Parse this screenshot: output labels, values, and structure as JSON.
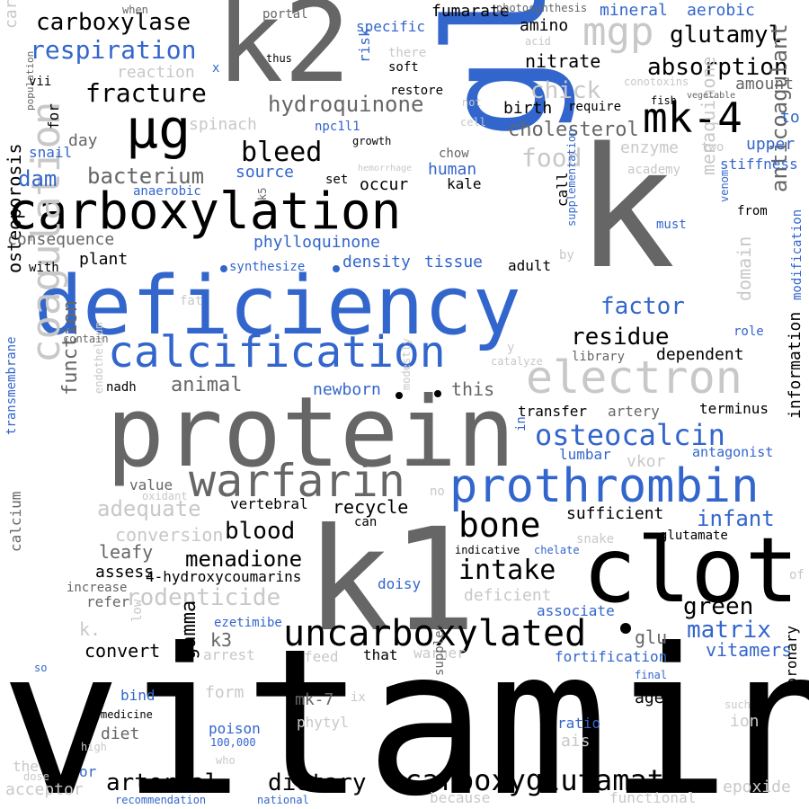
{
  "colors": {
    "black": "#000000",
    "dark_gray": "#666666",
    "light_gray": "#c8c8c8",
    "blue": "#3366cc"
  },
  "words": [
    {
      "text": "vitamin",
      "c": "k"
    },
    {
      "text": "protein",
      "c": "d"
    },
    {
      "text": "deficiency",
      "c": "b"
    },
    {
      "text": "k1",
      "c": "d"
    },
    {
      "text": "k",
      "c": "d"
    },
    {
      "text": "k2",
      "c": "d"
    },
    {
      "text": "gla",
      "c": "b"
    },
    {
      "text": "clot",
      "c": "k"
    },
    {
      "text": "carboxylation",
      "c": "k"
    },
    {
      "text": "calcification",
      "c": "b"
    },
    {
      "text": "prothrombin",
      "c": "b"
    },
    {
      "text": "electron",
      "c": "l"
    },
    {
      "text": "coagulation",
      "c": "l"
    },
    {
      "text": "warfarin",
      "c": "d"
    },
    {
      "text": "uncarboxylated",
      "c": "k"
    },
    {
      "text": "mk-4",
      "c": "k"
    },
    {
      "text": "µg",
      "c": "k"
    },
    {
      "text": "bone",
      "c": "k"
    },
    {
      "text": "mgp",
      "c": "l"
    },
    {
      "text": "carboxyglutamate",
      "c": "k"
    },
    {
      "text": "osteocalcin",
      "c": "b"
    },
    {
      "text": "intake",
      "c": "k"
    },
    {
      "text": "fracture",
      "c": "k"
    },
    {
      "text": "bleed",
      "c": "k"
    },
    {
      "text": "respiration",
      "c": "b"
    },
    {
      "text": "carboxylase",
      "c": "k"
    },
    {
      "text": "hydroquinone",
      "c": "d"
    },
    {
      "text": "absorption",
      "c": "k"
    },
    {
      "text": "glutamyl",
      "c": "k"
    },
    {
      "text": "bacterium",
      "c": "d"
    },
    {
      "text": "residue",
      "c": "k"
    },
    {
      "text": "anticoagulant",
      "c": "d"
    },
    {
      "text": "menaquinone",
      "c": "l"
    },
    {
      "text": "domain",
      "c": "l"
    },
    {
      "text": "factor",
      "c": "b"
    },
    {
      "text": "function",
      "c": "d"
    },
    {
      "text": "animal",
      "c": "d"
    },
    {
      "text": "adequate",
      "c": "l"
    },
    {
      "text": "blood",
      "c": "k"
    },
    {
      "text": "menadione",
      "c": "k"
    },
    {
      "text": "rodenticide",
      "c": "l"
    },
    {
      "text": "arterial",
      "c": "k"
    },
    {
      "text": "dietary",
      "c": "k"
    },
    {
      "text": "matrix",
      "c": "b"
    },
    {
      "text": "vitamers",
      "c": "b"
    },
    {
      "text": "green",
      "c": "k"
    },
    {
      "text": "infant",
      "c": "b"
    },
    {
      "text": "osteoporosis",
      "c": "k"
    },
    {
      "text": "gamma",
      "c": "k"
    },
    {
      "text": "food",
      "c": "l"
    },
    {
      "text": "chick",
      "c": "l"
    },
    {
      "text": "cholesterol",
      "c": "d"
    },
    {
      "text": "newborn",
      "c": "b"
    },
    {
      "text": "phylloquinone",
      "c": "b"
    },
    {
      "text": "density",
      "c": "b"
    },
    {
      "text": "tissue",
      "c": "b"
    },
    {
      "text": "dam",
      "c": "b"
    },
    {
      "text": "consequence",
      "c": "d"
    },
    {
      "text": "nitrate",
      "c": "k"
    },
    {
      "text": "amino",
      "c": "k"
    },
    {
      "text": "fumarate",
      "c": "k"
    },
    {
      "text": "mineral",
      "c": "b"
    },
    {
      "text": "aerobic",
      "c": "b"
    },
    {
      "text": "birth",
      "c": "k"
    },
    {
      "text": "upper",
      "c": "b"
    },
    {
      "text": "stiffness",
      "c": "b"
    },
    {
      "text": "enzyme",
      "c": "l"
    },
    {
      "text": "human",
      "c": "b"
    },
    {
      "text": "source",
      "c": "b"
    },
    {
      "text": "occur",
      "c": "k"
    },
    {
      "text": "kale",
      "c": "k"
    },
    {
      "text": "plant",
      "c": "k"
    },
    {
      "text": "adult",
      "c": "k"
    },
    {
      "text": "dependent",
      "c": "k"
    },
    {
      "text": "this",
      "c": "d"
    },
    {
      "text": "terminus",
      "c": "k"
    },
    {
      "text": "transfer",
      "c": "k"
    },
    {
      "text": "artery",
      "c": "d"
    },
    {
      "text": "information",
      "c": "k"
    },
    {
      "text": "antagonist",
      "c": "b"
    },
    {
      "text": "lumbar",
      "c": "b"
    },
    {
      "text": "vkor",
      "c": "l"
    },
    {
      "text": "sufficient",
      "c": "k"
    },
    {
      "text": "recycle",
      "c": "k"
    },
    {
      "text": "conversion",
      "c": "l"
    },
    {
      "text": "leafy",
      "c": "d"
    },
    {
      "text": "assess",
      "c": "k"
    },
    {
      "text": "4-hydroxycoumarins",
      "c": "k"
    },
    {
      "text": "increase",
      "c": "d"
    },
    {
      "text": "refer",
      "c": "d"
    },
    {
      "text": "calcium",
      "c": "d"
    },
    {
      "text": "deficient",
      "c": "l"
    },
    {
      "text": "doisy",
      "c": "b"
    },
    {
      "text": "associate",
      "c": "b"
    },
    {
      "text": "convert",
      "c": "k"
    },
    {
      "text": "k3",
      "c": "d"
    },
    {
      "text": "ezetimibe",
      "c": "b"
    },
    {
      "text": "arrest",
      "c": "l"
    },
    {
      "text": "feed",
      "c": "l"
    },
    {
      "text": "that",
      "c": "k"
    },
    {
      "text": "warner",
      "c": "l"
    },
    {
      "text": "fortification",
      "c": "b"
    },
    {
      "text": "glu",
      "c": "d"
    },
    {
      "text": "form",
      "c": "l"
    },
    {
      "text": "bind",
      "c": "b"
    },
    {
      "text": "mk-7",
      "c": "d"
    },
    {
      "text": "ix",
      "c": "l"
    },
    {
      "text": "age",
      "c": "k"
    },
    {
      "text": "diet",
      "c": "d"
    },
    {
      "text": "poison",
      "c": "b"
    },
    {
      "text": "100,000",
      "c": "b"
    },
    {
      "text": "phytyl",
      "c": "l"
    },
    {
      "text": "ratio",
      "c": "b"
    },
    {
      "text": "ais",
      "c": "l"
    },
    {
      "text": "ion",
      "c": "l"
    },
    {
      "text": "such",
      "c": "l"
    },
    {
      "text": "coronary",
      "c": "k"
    },
    {
      "text": "acceptor",
      "c": "l"
    },
    {
      "text": "or",
      "c": "b"
    },
    {
      "text": "the",
      "c": "l"
    },
    {
      "text": "recommendation",
      "c": "b"
    },
    {
      "text": "national",
      "c": "b"
    },
    {
      "text": "because",
      "c": "l"
    },
    {
      "text": "functional",
      "c": "l"
    },
    {
      "text": "epoxide",
      "c": "l"
    },
    {
      "text": "supplement",
      "c": "d"
    },
    {
      "text": "medicine",
      "c": "k"
    },
    {
      "text": "high",
      "c": "l"
    },
    {
      "text": "dose",
      "c": "l"
    },
    {
      "text": "who",
      "c": "l"
    },
    {
      "text": "so",
      "c": "b"
    },
    {
      "text": "low",
      "c": "l"
    },
    {
      "text": "k.",
      "c": "l"
    },
    {
      "text": "value",
      "c": "d"
    },
    {
      "text": "oxidant",
      "c": "l"
    },
    {
      "text": "vertebral",
      "c": "k"
    },
    {
      "text": "can",
      "c": "k"
    },
    {
      "text": "no",
      "c": "l"
    },
    {
      "text": "transmembrane",
      "c": "b"
    },
    {
      "text": "endothelium",
      "c": "l"
    },
    {
      "text": "modestly",
      "c": "l"
    },
    {
      "text": "in",
      "c": "b"
    },
    {
      "text": "indicative",
      "c": "k"
    },
    {
      "text": "chelate",
      "c": "b"
    },
    {
      "text": "snake",
      "c": "l"
    },
    {
      "text": "glutamate",
      "c": "k"
    },
    {
      "text": "of",
      "c": "l"
    },
    {
      "text": "final",
      "c": "b"
    },
    {
      "text": "fat",
      "c": "l"
    },
    {
      "text": "contain",
      "c": "d"
    },
    {
      "text": "library",
      "c": "d"
    },
    {
      "text": "catalyze",
      "c": "l"
    },
    {
      "text": "y",
      "c": "l"
    },
    {
      "text": "role",
      "c": "b"
    },
    {
      "text": "modification",
      "c": "b"
    },
    {
      "text": "supplementation",
      "c": "b"
    },
    {
      "text": "by",
      "c": "l"
    },
    {
      "text": "must",
      "c": "b"
    },
    {
      "text": "venom",
      "c": "b"
    },
    {
      "text": "from",
      "c": "k"
    },
    {
      "text": "call",
      "c": "k"
    },
    {
      "text": "specific",
      "c": "b"
    },
    {
      "text": "academy",
      "c": "l"
    },
    {
      "text": "chow",
      "c": "d"
    },
    {
      "text": "hemorrhage",
      "c": "l"
    },
    {
      "text": "set",
      "c": "k"
    },
    {
      "text": "two",
      "c": "l"
    },
    {
      "text": "fish",
      "c": "k"
    },
    {
      "text": "vegetable",
      "c": "d"
    },
    {
      "text": "conotoxins",
      "c": "l"
    },
    {
      "text": "amount",
      "c": "d"
    },
    {
      "text": "to",
      "c": "b"
    },
    {
      "text": "require",
      "c": "k"
    },
    {
      "text": "cell",
      "c": "l"
    },
    {
      "text": "not",
      "c": "l"
    },
    {
      "text": "restore",
      "c": "k"
    },
    {
      "text": "growth",
      "c": "k"
    },
    {
      "text": "npc1l1",
      "c": "b"
    },
    {
      "text": "thus",
      "c": "k"
    },
    {
      "text": "portal",
      "c": "d"
    },
    {
      "text": "when",
      "c": "d"
    },
    {
      "text": "there",
      "c": "l"
    },
    {
      "text": "soft",
      "c": "k"
    },
    {
      "text": "risk",
      "c": "b"
    },
    {
      "text": "acid",
      "c": "l"
    },
    {
      "text": "photosynthesis",
      "c": "d"
    },
    {
      "text": "reaction",
      "c": "l"
    },
    {
      "text": "x",
      "c": "b"
    },
    {
      "text": "spinach",
      "c": "l"
    },
    {
      "text": "carboxylated",
      "c": "l"
    },
    {
      "text": "population",
      "c": "d"
    },
    {
      "text": "vii",
      "c": "k"
    },
    {
      "text": "for",
      "c": "k"
    },
    {
      "text": "day",
      "c": "d"
    },
    {
      "text": "snail",
      "c": "b"
    },
    {
      "text": "anaerobic",
      "c": "b"
    },
    {
      "text": "k5",
      "c": "d"
    },
    {
      "text": "with",
      "c": "k"
    },
    {
      "text": "synthesize",
      "c": "b"
    },
    {
      "text": "nadh",
      "c": "k"
    }
  ]
}
